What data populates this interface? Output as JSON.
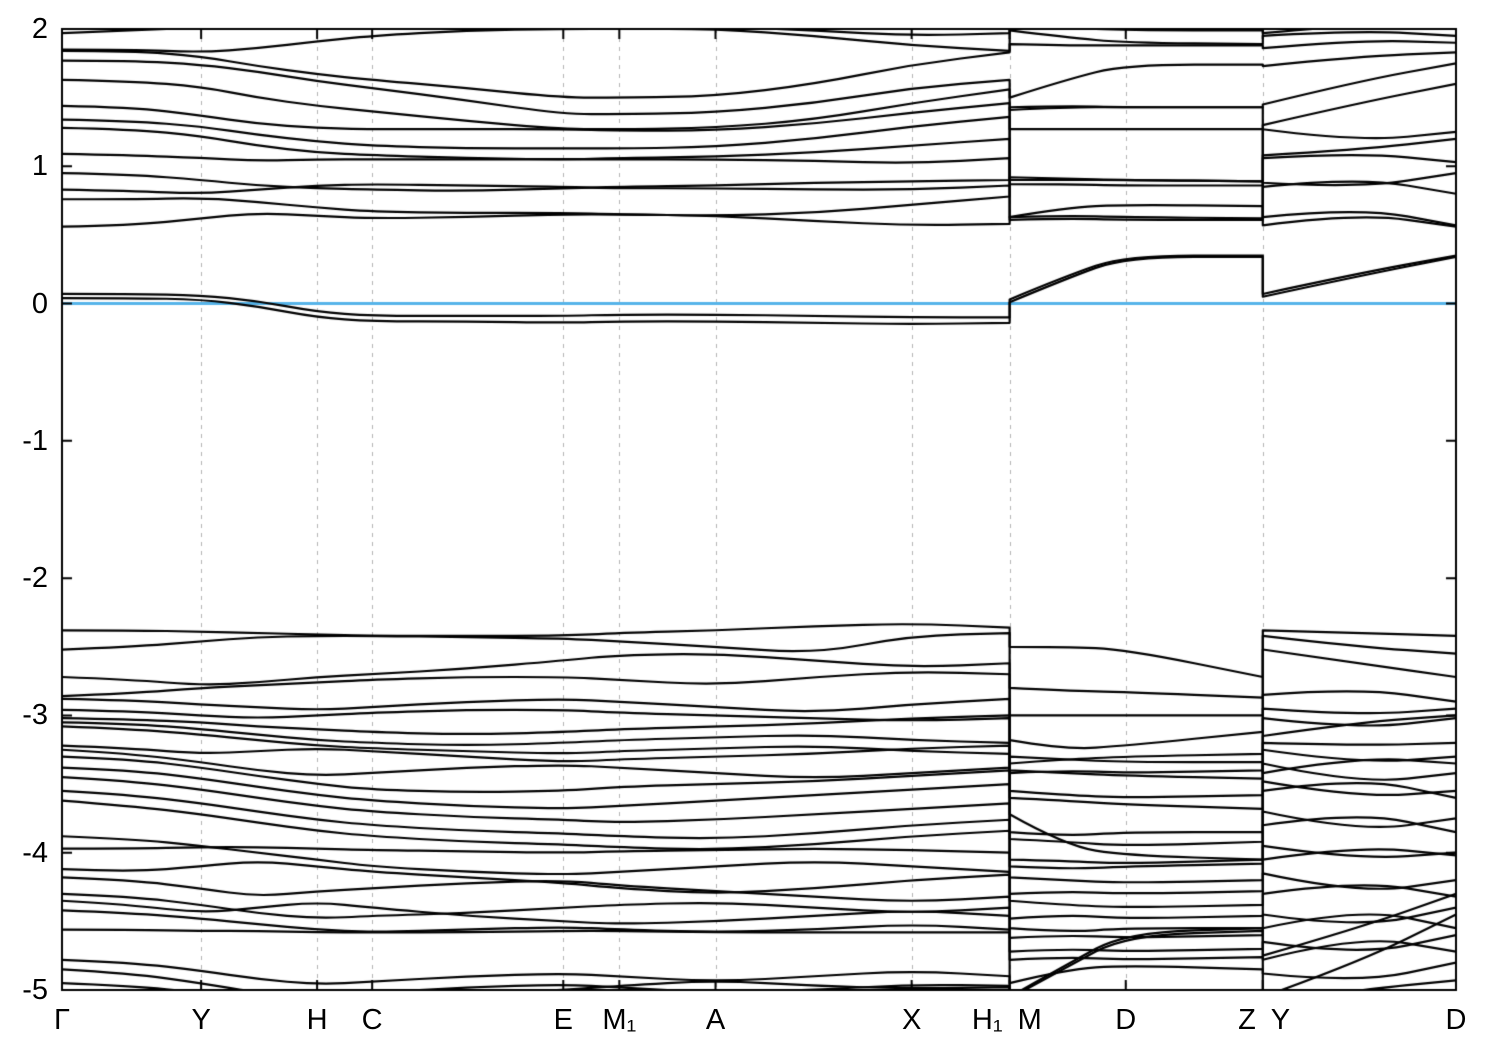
{
  "chart_data": {
    "type": "line",
    "title": "",
    "xlabel": "",
    "ylabel": "",
    "description": "Electronic band structure along high-symmetry k-path with Fermi level at 0",
    "ylim": [
      -5,
      2
    ],
    "grid": "vertical-dashed",
    "legend": "none",
    "band_color": "#000000",
    "grid_color": "#b3b3b3",
    "border_color": "#000000",
    "fermi_level": {
      "energy": 0,
      "color": "#56B4E9"
    },
    "y_ticks": [
      {
        "value": 2,
        "label": "2"
      },
      {
        "value": 1,
        "label": "1"
      },
      {
        "value": 0,
        "label": "0"
      },
      {
        "value": -1,
        "label": "-1"
      },
      {
        "value": -2,
        "label": "-2"
      },
      {
        "value": -3,
        "label": "-3"
      },
      {
        "value": -4,
        "label": "-4"
      },
      {
        "value": -5,
        "label": "-5"
      }
    ],
    "x_ticks": [
      {
        "label": "Γ",
        "pos": 0.0,
        "align": "center",
        "grid": false
      },
      {
        "label": "Y",
        "pos": 0.0998,
        "align": "center",
        "grid": true
      },
      {
        "label": "H",
        "pos": 0.183,
        "align": "center",
        "grid": true
      },
      {
        "label": "C",
        "pos": 0.2225,
        "align": "center",
        "grid": true
      },
      {
        "label": "E",
        "pos": 0.3596,
        "align": "center",
        "grid": true
      },
      {
        "label": "M₁",
        "pos": 0.3998,
        "align": "center",
        "grid": true
      },
      {
        "label": "A",
        "pos": 0.4688,
        "align": "center",
        "grid": true
      },
      {
        "label": "X",
        "pos": 0.6095,
        "align": "center",
        "grid": true
      },
      {
        "label": "H₁",
        "pos": 0.6798,
        "align": "before",
        "grid": true
      },
      {
        "label": "M",
        "pos": 0.6798,
        "align": "after",
        "grid": false
      },
      {
        "label": "D",
        "pos": 0.7631,
        "align": "center",
        "grid": true
      },
      {
        "label": "Z",
        "pos": 0.8614,
        "align": "before",
        "grid": true
      },
      {
        "label": "Y",
        "pos": 0.8614,
        "align": "after",
        "grid": false
      },
      {
        "label": "D",
        "pos": 1.0,
        "align": "center",
        "grid": false
      }
    ],
    "panel_boundaries": [
      0.6798,
      0.8614
    ],
    "band_t": [
      0,
      0.05,
      0.0998,
      0.14,
      0.183,
      0.2225,
      0.29,
      0.3596,
      0.3998,
      0.4688,
      0.54,
      0.6095,
      0.6798,
      0.6798,
      0.72,
      0.7631,
      0.8614,
      0.8614,
      0.93,
      1.0
    ],
    "bands": [
      [
        1.97,
        1.99,
        2.01,
        2.03,
        2.04,
        2.04,
        2.03,
        2.02,
        2.02,
        2.02,
        1.99,
        1.95,
        1.97,
        2.04,
        2.01,
        1.99,
        1.99,
        1.97,
        2.03,
        2.05
      ],
      [
        1.85,
        1.85,
        1.83,
        1.86,
        1.91,
        1.95,
        1.99,
        2.0,
        2.0,
        2.0,
        1.95,
        1.88,
        1.84,
        1.99,
        1.94,
        1.9,
        1.89,
        1.95,
        1.99,
        1.95
      ],
      [
        1.84,
        1.84,
        1.8,
        1.73,
        1.67,
        1.63,
        1.57,
        1.5,
        1.5,
        1.51,
        1.6,
        1.74,
        1.83,
        1.89,
        1.88,
        1.88,
        1.88,
        1.86,
        1.92,
        1.9
      ],
      [
        1.77,
        1.77,
        1.74,
        1.69,
        1.62,
        1.57,
        1.48,
        1.38,
        1.38,
        1.39,
        1.46,
        1.57,
        1.63,
        1.5,
        1.63,
        1.74,
        1.74,
        1.73,
        1.8,
        1.83
      ],
      [
        1.63,
        1.62,
        1.58,
        1.5,
        1.44,
        1.4,
        1.33,
        1.27,
        1.27,
        1.28,
        1.34,
        1.46,
        1.56,
        1.41,
        1.43,
        1.43,
        1.43,
        1.45,
        1.62,
        1.75
      ],
      [
        1.44,
        1.43,
        1.37,
        1.31,
        1.28,
        1.27,
        1.27,
        1.27,
        1.26,
        1.26,
        1.31,
        1.39,
        1.46,
        1.27,
        1.27,
        1.27,
        1.27,
        1.3,
        1.46,
        1.6
      ],
      [
        1.34,
        1.33,
        1.29,
        1.23,
        1.18,
        1.15,
        1.13,
        1.13,
        1.13,
        1.14,
        1.2,
        1.29,
        1.36,
        0.9,
        0.9,
        0.9,
        0.89,
        1.27,
        1.18,
        1.25
      ],
      [
        1.28,
        1.27,
        1.22,
        1.15,
        1.1,
        1.08,
        1.06,
        1.05,
        1.06,
        1.07,
        1.1,
        1.15,
        1.2,
        0.63,
        0.64,
        0.63,
        0.62,
        1.08,
        1.12,
        1.2
      ],
      [
        1.09,
        1.08,
        1.06,
        1.04,
        1.05,
        1.05,
        1.05,
        1.05,
        1.05,
        1.05,
        1.04,
        1.02,
        1.06,
        0.87,
        0.87,
        0.86,
        0.86,
        1.06,
        1.1,
        1.03
      ],
      [
        0.95,
        0.94,
        0.9,
        0.86,
        0.84,
        0.83,
        0.82,
        0.84,
        0.85,
        0.86,
        0.88,
        0.89,
        0.9,
        0.92,
        0.91,
        0.9,
        0.89,
        0.88,
        0.84,
        0.95
      ],
      [
        0.83,
        0.82,
        0.8,
        0.83,
        0.86,
        0.87,
        0.86,
        0.85,
        0.84,
        0.84,
        0.83,
        0.83,
        0.86,
        0.61,
        0.62,
        0.61,
        0.61,
        0.85,
        0.92,
        0.8
      ],
      [
        0.76,
        0.76,
        0.77,
        0.74,
        0.7,
        0.67,
        0.66,
        0.66,
        0.65,
        0.64,
        0.66,
        0.72,
        0.78,
        1.43,
        1.44,
        1.43,
        1.43,
        0.63,
        0.7,
        0.57
      ],
      [
        0.56,
        0.57,
        0.62,
        0.66,
        0.64,
        0.62,
        0.63,
        0.65,
        0.65,
        0.64,
        0.6,
        0.57,
        0.58,
        0.63,
        0.7,
        0.72,
        0.71,
        0.57,
        0.66,
        0.56
      ],
      [
        0.07,
        0.07,
        0.06,
        0.02,
        -0.06,
        -0.09,
        -0.09,
        -0.09,
        -0.08,
        -0.08,
        -0.09,
        -0.1,
        -0.1,
        0.03,
        0.2,
        0.35,
        0.35,
        0.07,
        0.22,
        0.35
      ],
      [
        0.04,
        0.04,
        0.03,
        -0.02,
        -0.1,
        -0.13,
        -0.13,
        -0.14,
        -0.13,
        -0.13,
        -0.14,
        -0.15,
        -0.14,
        0.01,
        0.18,
        0.34,
        0.34,
        0.05,
        0.2,
        0.34
      ],
      [
        -2.38,
        -2.38,
        -2.39,
        -2.4,
        -2.41,
        -2.42,
        -2.42,
        -2.42,
        -2.4,
        -2.38,
        -2.35,
        -2.33,
        -2.36,
        -2.5,
        -2.5,
        -2.52,
        -2.72,
        -2.38,
        -2.4,
        -2.42
      ],
      [
        -2.52,
        -2.5,
        -2.46,
        -2.43,
        -2.42,
        -2.42,
        -2.43,
        -2.44,
        -2.46,
        -2.5,
        -2.55,
        -2.42,
        -2.4,
        -2.8,
        -2.82,
        -2.83,
        -2.87,
        -2.42,
        -2.5,
        -2.55
      ],
      [
        -2.72,
        -2.74,
        -2.78,
        -2.76,
        -2.72,
        -2.7,
        -2.66,
        -2.6,
        -2.56,
        -2.55,
        -2.6,
        -2.65,
        -2.62,
        -3.0,
        -3.0,
        -3.0,
        -3.0,
        -2.52,
        -2.62,
        -2.72
      ],
      [
        -2.86,
        -2.84,
        -2.8,
        -2.78,
        -2.76,
        -2.74,
        -2.72,
        -2.72,
        -2.74,
        -2.78,
        -2.72,
        -2.68,
        -2.7,
        -3.18,
        -3.25,
        -3.22,
        -3.12,
        -2.85,
        -2.8,
        -2.9
      ],
      [
        -2.88,
        -2.89,
        -2.92,
        -2.94,
        -2.96,
        -2.94,
        -2.9,
        -2.88,
        -2.9,
        -2.94,
        -2.98,
        -2.92,
        -2.88,
        -3.35,
        -3.32,
        -3.3,
        -3.28,
        -2.95,
        -3.0,
        -2.95
      ],
      [
        -2.96,
        -2.97,
        -3.0,
        -3.02,
        -3.0,
        -2.98,
        -2.96,
        -2.96,
        -2.98,
        -3.0,
        -3.02,
        -3.04,
        -3.02,
        -3.42,
        -3.4,
        -3.42,
        -3.4,
        -3.02,
        -3.1,
        -3.02
      ],
      [
        -3.02,
        -3.03,
        -3.05,
        -3.08,
        -3.1,
        -3.12,
        -3.14,
        -3.12,
        -3.1,
        -3.08,
        -3.06,
        -3.02,
        -3.0,
        -3.55,
        -3.58,
        -3.6,
        -3.58,
        -3.15,
        -3.05,
        -3.0
      ],
      [
        -3.05,
        -3.06,
        -3.1,
        -3.14,
        -3.18,
        -3.2,
        -3.22,
        -3.2,
        -3.18,
        -3.16,
        -3.14,
        -3.18,
        -3.2,
        -3.72,
        -3.95,
        -4.02,
        -4.05,
        -3.2,
        -3.22,
        -3.2
      ],
      [
        -3.08,
        -3.1,
        -3.14,
        -3.18,
        -3.22,
        -3.24,
        -3.26,
        -3.28,
        -3.26,
        -3.24,
        -3.22,
        -3.26,
        -3.28,
        -3.6,
        -3.62,
        -3.65,
        -3.68,
        -3.25,
        -3.35,
        -3.3
      ],
      [
        -3.22,
        -3.24,
        -3.28,
        -3.26,
        -3.24,
        -3.26,
        -3.3,
        -3.34,
        -3.32,
        -3.3,
        -3.28,
        -3.24,
        -3.22,
        -3.4,
        -3.42,
        -3.44,
        -3.46,
        -3.35,
        -3.5,
        -3.42
      ],
      [
        -3.25,
        -3.28,
        -3.34,
        -3.4,
        -3.44,
        -3.42,
        -3.38,
        -3.36,
        -3.38,
        -3.42,
        -3.46,
        -3.42,
        -3.38,
        -3.3,
        -3.32,
        -3.34,
        -3.34,
        -3.42,
        -3.3,
        -3.35
      ],
      [
        -3.3,
        -3.32,
        -3.38,
        -3.44,
        -3.5,
        -3.54,
        -3.56,
        -3.55,
        -3.52,
        -3.5,
        -3.48,
        -3.44,
        -3.4,
        -3.85,
        -3.88,
        -3.85,
        -3.85,
        -3.48,
        -3.6,
        -3.55
      ],
      [
        -3.38,
        -3.4,
        -3.46,
        -3.52,
        -3.58,
        -3.62,
        -3.66,
        -3.68,
        -3.66,
        -3.62,
        -3.58,
        -3.54,
        -3.5,
        -3.9,
        -3.92,
        -3.95,
        -3.92,
        -3.55,
        -3.45,
        -3.6
      ],
      [
        -3.45,
        -3.48,
        -3.54,
        -3.6,
        -3.66,
        -3.7,
        -3.74,
        -3.76,
        -3.78,
        -3.76,
        -3.72,
        -3.68,
        -3.64,
        -4.05,
        -4.06,
        -4.08,
        -4.05,
        -3.7,
        -3.85,
        -3.75
      ],
      [
        -3.55,
        -3.58,
        -3.64,
        -3.7,
        -3.76,
        -3.8,
        -3.84,
        -3.86,
        -3.88,
        -3.9,
        -3.86,
        -3.8,
        -3.76,
        -4.1,
        -4.12,
        -4.1,
        -4.08,
        -3.8,
        -3.7,
        -3.85
      ],
      [
        -3.62,
        -3.66,
        -3.72,
        -3.78,
        -3.84,
        -3.88,
        -3.92,
        -3.94,
        -3.96,
        -3.98,
        -3.94,
        -3.88,
        -3.84,
        -4.18,
        -4.2,
        -4.22,
        -4.2,
        -3.95,
        -4.05,
        -4.0
      ],
      [
        -3.97,
        -3.97,
        -3.96,
        -3.96,
        -3.97,
        -3.98,
        -3.99,
        -4.0,
        -3.99,
        -3.98,
        -3.97,
        -3.98,
        -4.0,
        -4.3,
        -4.28,
        -4.3,
        -4.28,
        -4.05,
        -3.95,
        -4.02
      ],
      [
        -3.88,
        -3.9,
        -3.95,
        -4.0,
        -4.05,
        -4.1,
        -4.14,
        -4.16,
        -4.14,
        -4.1,
        -4.06,
        -4.1,
        -4.14,
        -4.35,
        -4.38,
        -4.4,
        -4.38,
        -4.15,
        -4.3,
        -4.2
      ],
      [
        -4.12,
        -4.14,
        -4.1,
        -4.06,
        -4.1,
        -4.14,
        -4.18,
        -4.22,
        -4.26,
        -4.3,
        -4.26,
        -4.2,
        -4.16,
        -4.48,
        -4.45,
        -4.48,
        -4.46,
        -4.3,
        -4.2,
        -4.32
      ],
      [
        -4.18,
        -4.2,
        -4.26,
        -4.32,
        -4.28,
        -4.26,
        -4.22,
        -4.2,
        -4.24,
        -4.28,
        -4.32,
        -4.36,
        -4.32,
        -4.55,
        -4.58,
        -4.55,
        -4.55,
        -4.45,
        -4.55,
        -4.4
      ],
      [
        -4.3,
        -4.32,
        -4.38,
        -4.44,
        -4.48,
        -4.46,
        -4.44,
        -4.4,
        -4.38,
        -4.36,
        -4.4,
        -4.44,
        -4.4,
        -4.62,
        -4.6,
        -4.62,
        -4.6,
        -4.55,
        -4.4,
        -4.55
      ],
      [
        -4.35,
        -4.38,
        -4.44,
        -4.4,
        -4.36,
        -4.4,
        -4.46,
        -4.5,
        -4.52,
        -4.5,
        -4.46,
        -4.42,
        -4.46,
        -4.72,
        -4.7,
        -4.72,
        -4.7,
        -4.65,
        -4.75,
        -4.6
      ],
      [
        -4.42,
        -4.44,
        -4.48,
        -4.52,
        -4.56,
        -4.58,
        -4.56,
        -4.54,
        -4.56,
        -4.58,
        -4.56,
        -4.52,
        -4.56,
        -4.78,
        -4.76,
        -4.78,
        -4.76,
        -4.78,
        -4.6,
        -4.72
      ],
      [
        -4.56,
        -4.56,
        -4.57,
        -4.57,
        -4.58,
        -4.58,
        -4.58,
        -4.57,
        -4.57,
        -4.58,
        -4.58,
        -4.58,
        -4.58,
        -4.95,
        -4.85,
        -4.82,
        -4.85,
        -4.88,
        -4.95,
        -4.8
      ],
      [
        -4.78,
        -4.8,
        -4.86,
        -4.92,
        -4.96,
        -4.94,
        -4.9,
        -4.88,
        -4.9,
        -4.94,
        -4.9,
        -4.86,
        -4.9,
        -5.05,
        -4.82,
        -4.58,
        -4.55,
        -4.75,
        -4.55,
        -4.3
      ],
      [
        -4.85,
        -4.88,
        -4.95,
        -5.02,
        -5.05,
        -5.02,
        -4.98,
        -4.96,
        -4.98,
        -5.02,
        -5.0,
        -4.96,
        -4.97,
        -5.06,
        -4.84,
        -4.6,
        -4.57,
        -5.05,
        -4.8,
        -4.45
      ],
      [
        -4.95,
        -4.97,
        -5.02,
        -5.06,
        -5.08,
        -5.06,
        -5.04,
        -5.0,
        -4.97,
        -4.93,
        -4.97,
        -4.99,
        -4.98,
        -5.08,
        -5.04,
        -5.0,
        -5.02,
        -5.1,
        -5.0,
        -4.93
      ]
    ]
  }
}
